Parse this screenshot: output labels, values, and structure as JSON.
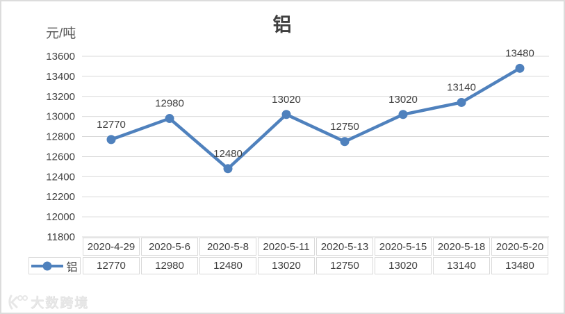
{
  "chart_data": {
    "type": "line",
    "title": "铝",
    "ylabel": "元/吨",
    "xlabel": "",
    "categories": [
      "2020-4-29",
      "2020-5-6",
      "2020-5-8",
      "2020-5-11",
      "2020-5-13",
      "2020-5-15",
      "2020-5-18",
      "2020-5-20"
    ],
    "series": [
      {
        "name": "铝",
        "values": [
          12770,
          12980,
          12480,
          13020,
          12750,
          13020,
          13140,
          13480
        ]
      }
    ],
    "ylim": [
      11800,
      13600
    ],
    "ytick_step": 200,
    "ytick_labels": [
      "13600",
      "13400",
      "13200",
      "13000",
      "12800",
      "12600",
      "12400",
      "12200",
      "12000",
      "11800"
    ],
    "grid": true,
    "data_labels": true,
    "legend_position": "left-of-data-table",
    "colors": {
      "line": "#4f81bd",
      "grid": "#d9d9d9",
      "text": "#404040",
      "table_border": "#d9d9d9"
    }
  },
  "watermark": {
    "text": "大数跨境"
  }
}
